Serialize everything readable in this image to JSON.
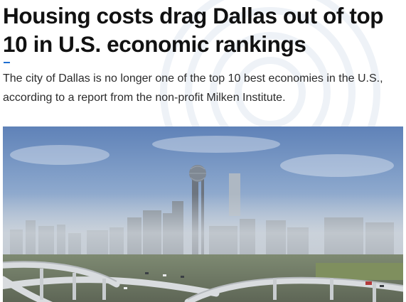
{
  "article": {
    "headline": "Housing costs drag Dallas out of top 10 in U.S. economic rankings",
    "dek": "The city of Dallas is no longer one of the top 10 best economies in the U.S., according to a report from the non-profit Milken Institute."
  },
  "colors": {
    "accent": "#1f6fd1",
    "headline": "#111111",
    "body_text": "#2b2b2b"
  },
  "hero_image": {
    "subject": "foggy-dallas-skyline-with-highway-interchange"
  }
}
